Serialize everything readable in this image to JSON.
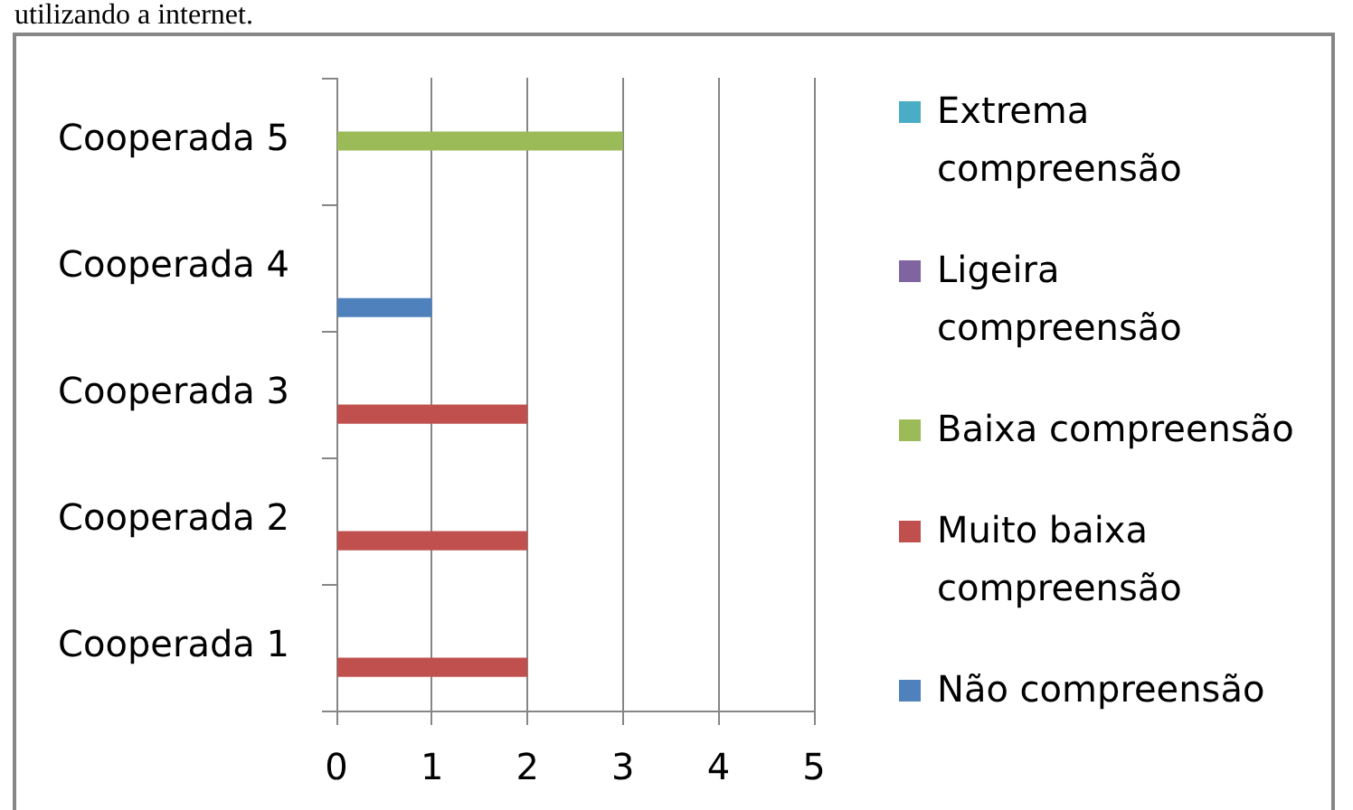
{
  "chart_data": {
    "type": "bar",
    "orientation": "horizontal",
    "annotations": [
      "utilizando a internet."
    ],
    "categories": [
      "Cooperada 5",
      "Cooperada 4",
      "Cooperada 3",
      "Cooperada 2",
      "Cooperada 1"
    ],
    "series": [
      {
        "name": "Extrema compreensão",
        "color": "#4bacc6",
        "values": [
          0,
          0,
          0,
          0,
          0
        ]
      },
      {
        "name": "Ligeira compreensão",
        "color": "#8064a2",
        "values": [
          0,
          0,
          0,
          0,
          0
        ]
      },
      {
        "name": "Baixa compreensão",
        "color": "#9bbb59",
        "values": [
          3,
          0,
          0,
          0,
          0
        ]
      },
      {
        "name": "Muito baixa compreensão",
        "color": "#c0504d",
        "values": [
          0,
          0,
          2,
          2,
          2
        ]
      },
      {
        "name": "Não compreensão",
        "color": "#4f81bd",
        "values": [
          0,
          1,
          0,
          0,
          0
        ]
      }
    ],
    "xlim": [
      0,
      5
    ],
    "xticks": [
      0,
      1,
      2,
      3,
      4,
      5
    ],
    "grid": "x",
    "legend": "right"
  }
}
